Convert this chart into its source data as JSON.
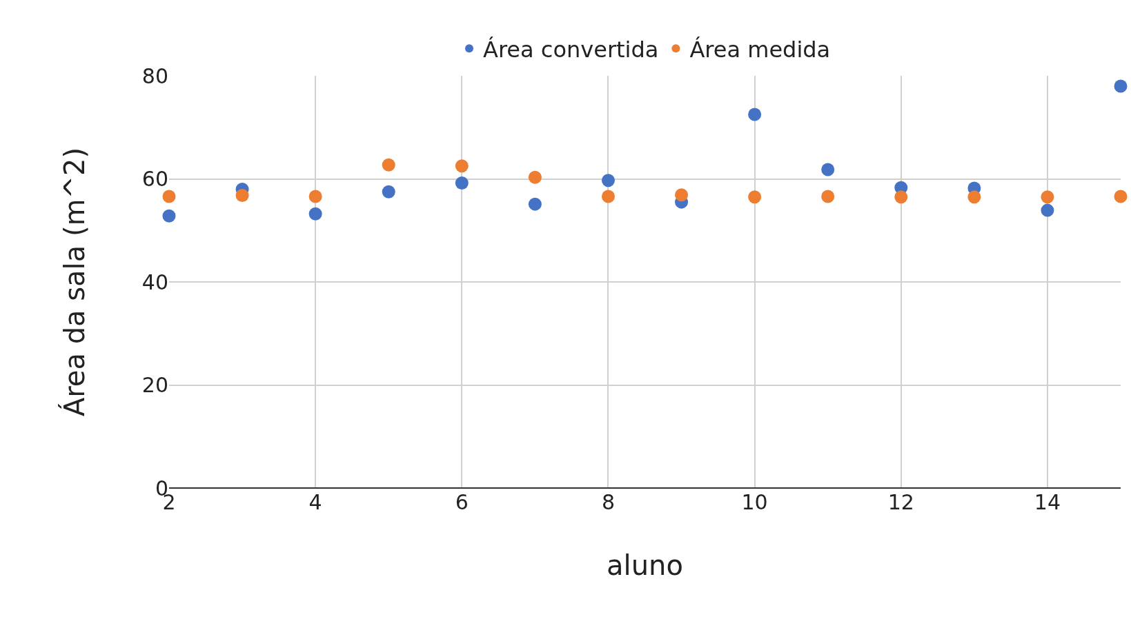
{
  "chart_data": {
    "type": "scatter",
    "xlabel": "aluno",
    "ylabel": "Área da sala (m^2)",
    "x": [
      2,
      3,
      4,
      5,
      6,
      7,
      8,
      9,
      10,
      11,
      12,
      13,
      14,
      15
    ],
    "series": [
      {
        "name": "Área convertida",
        "color": "#4472c4",
        "values": [
          52.8,
          58.0,
          53.2,
          57.5,
          59.2,
          55.1,
          59.7,
          55.5,
          72.5,
          61.8,
          58.3,
          58.2,
          53.9,
          78.0
        ]
      },
      {
        "name": "Área medida",
        "color": "#ed7d31",
        "values": [
          56.6,
          56.8,
          56.6,
          62.7,
          62.5,
          60.3,
          56.6,
          56.9,
          56.5,
          56.6,
          56.5,
          56.5,
          56.5,
          56.6
        ]
      }
    ],
    "xlim": [
      2,
      15
    ],
    "xticks": [
      2,
      4,
      6,
      8,
      10,
      12,
      14
    ],
    "ylim": [
      0,
      80
    ],
    "yticks": [
      0,
      20,
      40,
      60,
      80
    ],
    "grid": true,
    "legend": "top",
    "marker": "circle"
  }
}
